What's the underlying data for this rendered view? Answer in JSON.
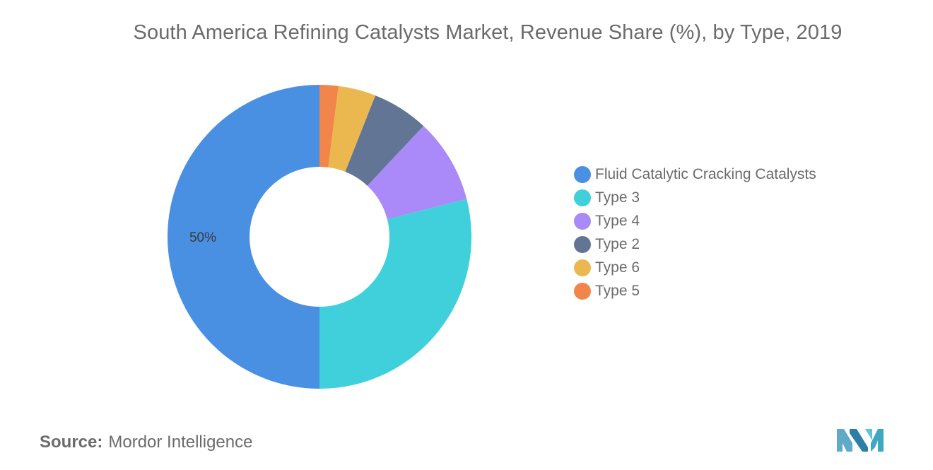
{
  "title": "South America Refining Catalysts Market, Revenue Share (%), by Type, 2019",
  "source": {
    "label": "Source:",
    "value": "Mordor Intelligence"
  },
  "logo_icon": "mordor-intelligence-logo",
  "chart_data": {
    "type": "pie",
    "variant": "donut",
    "title": "South America Refining Catalysts Market, Revenue Share (%), by Type, 2019",
    "legend_position": "right",
    "start_angle_deg": 0,
    "direction": "clockwise",
    "slices": [
      {
        "name": "Fluid Catalytic Cracking Catalysts",
        "value": 50,
        "color": "#4a90e2",
        "label": "50%"
      },
      {
        "name": "Type 3",
        "value": 29,
        "color": "#3fd0db",
        "label": ""
      },
      {
        "name": "Type 4",
        "value": 9,
        "color": "#a98af8",
        "label": ""
      },
      {
        "name": "Type 2",
        "value": 6,
        "color": "#627595",
        "label": ""
      },
      {
        "name": "Type 6",
        "value": 4,
        "color": "#ebb84f",
        "label": ""
      },
      {
        "name": "Type 5",
        "value": 2,
        "color": "#f2854a",
        "label": ""
      }
    ],
    "clockwise_order": [
      "Type 5",
      "Type 6",
      "Type 2",
      "Type 4",
      "Type 3",
      "Fluid Catalytic Cracking Catalysts"
    ]
  }
}
